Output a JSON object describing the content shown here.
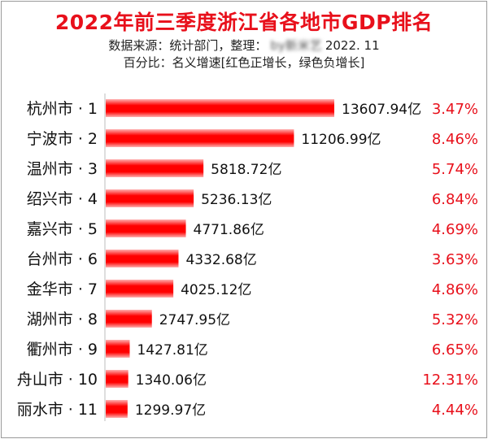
{
  "header": {
    "title": "2022年前三季度浙江省各地市GDP排名",
    "source_prefix": "数据来源：统计部门，整理：",
    "source_author": "by新米艺",
    "source_date": "2022. 11",
    "note": "百分比：名义增速[红色正增长，绿色负增长]"
  },
  "colors": {
    "bar": "#ff0000",
    "positive_growth": "#e8101b",
    "negative_growth": "#1a9e2f",
    "title": "#e8101b"
  },
  "chart_data": {
    "type": "bar",
    "orientation": "horizontal",
    "categories": [
      "杭州市 · 1",
      "宁波市 · 2",
      "温州市 · 3",
      "绍兴市 · 4",
      "嘉兴市 · 5",
      "台州市 · 6",
      "金华市 · 7",
      "湖州市 · 8",
      "衢州市 · 9",
      "舟山市 · 10",
      "丽水市 · 11"
    ],
    "values": [
      13607.94,
      11206.99,
      5818.72,
      5236.13,
      4771.86,
      4332.68,
      4025.12,
      2747.95,
      1427.81,
      1340.06,
      1299.97
    ],
    "value_labels": [
      "13607.94亿",
      "11206.99亿",
      "5818.72亿",
      "5236.13亿",
      "4771.86亿",
      "4332.68亿",
      "4025.12亿",
      "2747.95亿",
      "1427.81亿",
      "1340.06亿",
      "1299.97亿"
    ],
    "growth": [
      3.47,
      8.46,
      5.74,
      6.84,
      4.69,
      3.63,
      4.86,
      5.32,
      6.65,
      12.31,
      4.44
    ],
    "growth_labels": [
      "3.47%",
      "8.46%",
      "5.74%",
      "6.84%",
      "4.69%",
      "3.63%",
      "4.86%",
      "5.32%",
      "6.65%",
      "12.31%",
      "4.44%"
    ],
    "xlim": [
      0,
      13607.94
    ],
    "grid": false,
    "legend": "none",
    "title": "2022年前三季度浙江省各地市GDP排名"
  }
}
